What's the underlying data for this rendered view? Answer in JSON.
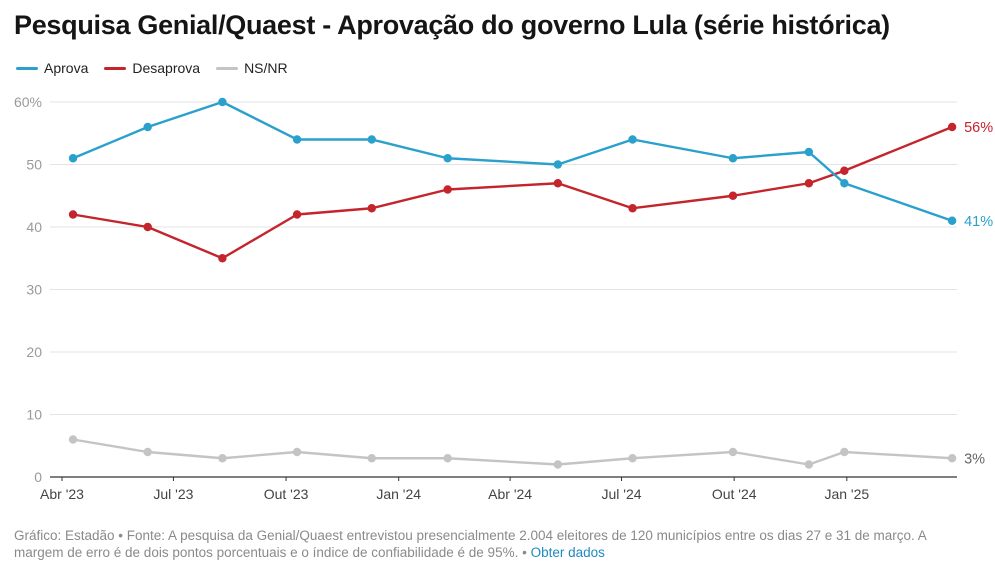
{
  "title": "Pesquisa Genial/Quaest - Aprovação do governo Lula (série histórica)",
  "footer": {
    "text": "Gráfico: Estadão • Fonte: A pesquisa da Genial/Quaest entrevistou presencialmente 2.004 eleitores de 120 municípios entre os dias 27 e 31 de março. A margem de erro é de dois pontos porcentuais e o índice de confiabilidade é de 95%. •",
    "link_label": "Obter dados"
  },
  "chart_data": {
    "type": "line",
    "title": "Pesquisa Genial/Quaest - Aprovação do governo Lula (série histórica)",
    "xlabel": "",
    "ylabel": "",
    "ylim": [
      0,
      60
    ],
    "yticks": [
      0,
      10,
      20,
      30,
      40,
      50,
      60
    ],
    "ytick_labels": [
      "0",
      "10",
      "20",
      "30",
      "40",
      "50",
      "60%"
    ],
    "xlim": [
      "2023-04-01",
      "2025-04-01"
    ],
    "xticks": [
      {
        "date": "2023-04-01",
        "label": "Abr '23"
      },
      {
        "date": "2023-07-01",
        "label": "Jul '23"
      },
      {
        "date": "2023-10-01",
        "label": "Out '23"
      },
      {
        "date": "2024-01-01",
        "label": "Jan '24"
      },
      {
        "date": "2024-04-01",
        "label": "Abr '24"
      },
      {
        "date": "2024-07-01",
        "label": "Jul '24"
      },
      {
        "date": "2024-10-01",
        "label": "Out '24"
      },
      {
        "date": "2025-01-01",
        "label": "Jan '25"
      }
    ],
    "x": [
      "2023-04-10",
      "2023-06-10",
      "2023-08-10",
      "2023-10-10",
      "2023-12-10",
      "2024-02-10",
      "2024-05-10",
      "2024-07-10",
      "2024-09-30",
      "2024-12-01",
      "2024-12-30",
      "2025-03-28"
    ],
    "series": [
      {
        "name": "Aprova",
        "color": "#2aa0cc",
        "values": [
          51,
          56,
          60,
          54,
          54,
          51,
          50,
          54,
          51,
          52,
          47,
          41
        ],
        "end_label": "41%"
      },
      {
        "name": "Desaprova",
        "color": "#c4242b",
        "values": [
          42,
          40,
          35,
          42,
          43,
          46,
          47,
          43,
          45,
          47,
          49,
          56
        ],
        "end_label": "56%"
      },
      {
        "name": "NS/NR",
        "color": "#c4c4c4",
        "values": [
          6,
          4,
          3,
          4,
          3,
          3,
          2,
          3,
          4,
          2,
          4,
          3
        ],
        "end_label": "3%"
      }
    ],
    "grid": true,
    "legend": "top-left"
  }
}
